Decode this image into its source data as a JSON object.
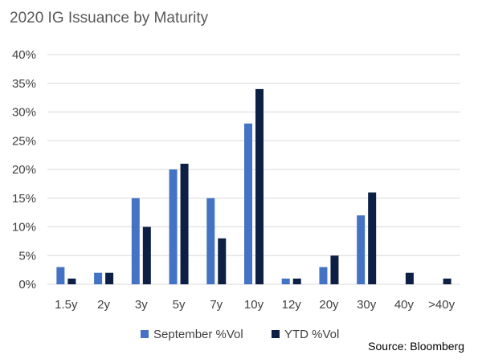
{
  "chart_data": {
    "type": "bar",
    "title": "2020 IG Issuance by Maturity",
    "xlabel": "",
    "ylabel": "",
    "categories": [
      "1.5y",
      "2y",
      "3y",
      "5y",
      "7y",
      "10y",
      "12y",
      "20y",
      "30y",
      "40y",
      ">40y"
    ],
    "series": [
      {
        "name": "September %Vol",
        "color": "#4472C4",
        "values": [
          3,
          2,
          15,
          20,
          15,
          28,
          1,
          3,
          12,
          0,
          0
        ]
      },
      {
        "name": "YTD %Vol",
        "color": "#0D1F45",
        "values": [
          1,
          2,
          10,
          21,
          8,
          34,
          1,
          5,
          16,
          2,
          1
        ]
      }
    ],
    "ylim": [
      0,
      40
    ],
    "yticks": [
      0,
      5,
      10,
      15,
      20,
      25,
      30,
      35,
      40
    ],
    "ytick_labels": [
      "0%",
      "5%",
      "10%",
      "15%",
      "20%",
      "25%",
      "30%",
      "35%",
      "40%"
    ],
    "grid": true,
    "legend_position": "bottom-center",
    "source": "Source:  Bloomberg"
  },
  "colors": {
    "gridline": "#D9D9D9",
    "axis_text": "#404040",
    "title_text": "#595959"
  }
}
